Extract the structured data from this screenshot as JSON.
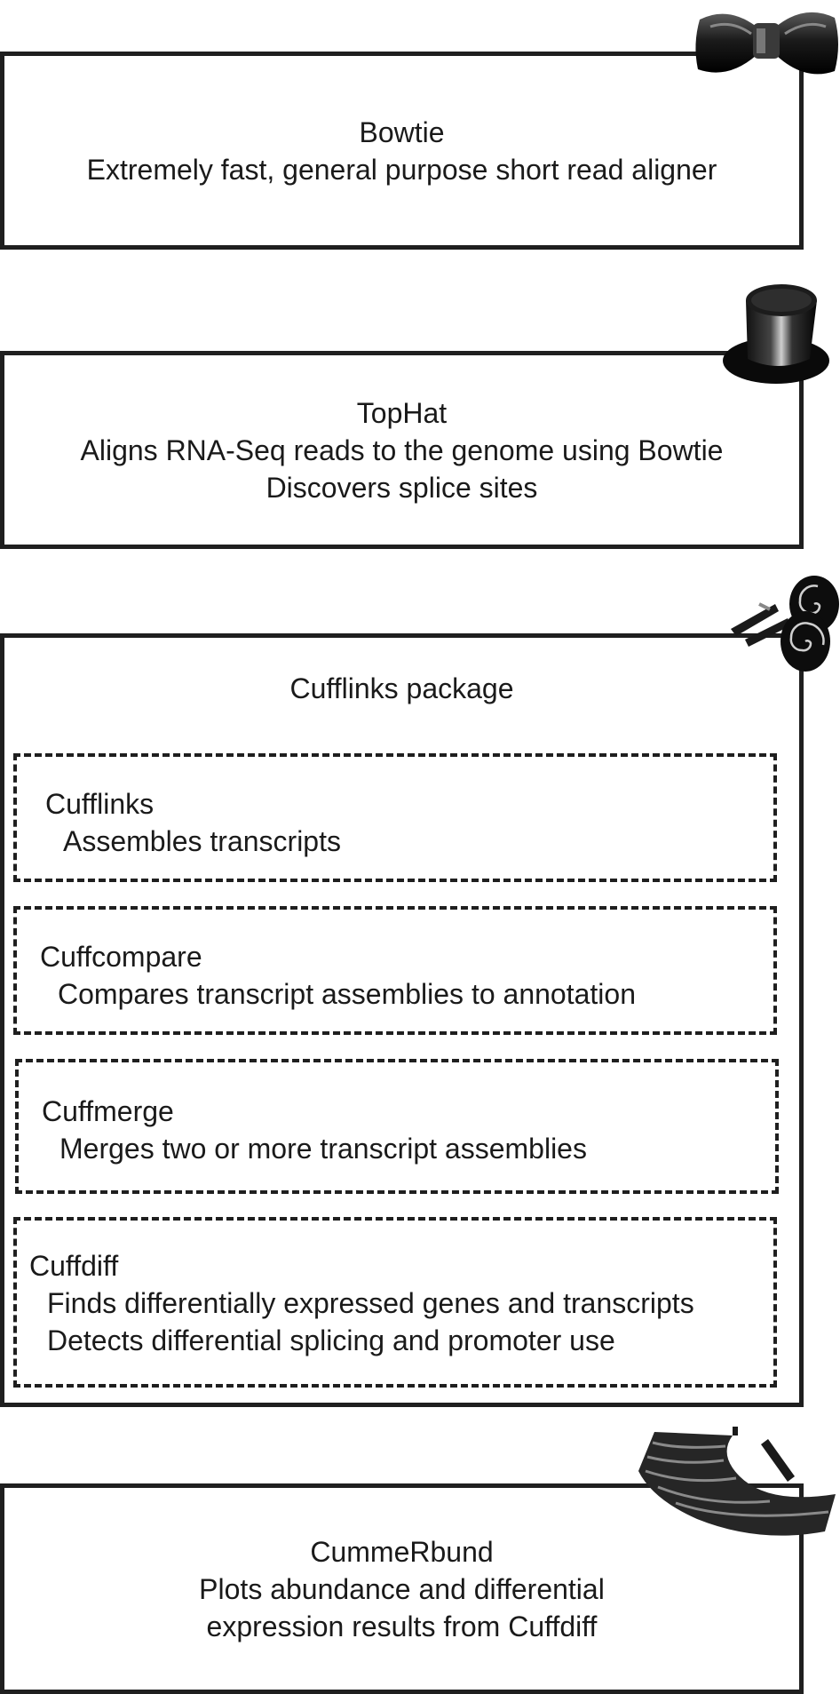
{
  "bowtie": {
    "title": "Bowtie",
    "description": "Extremely fast, general purpose short read aligner",
    "icon": "bowtie-icon"
  },
  "tophat": {
    "title": "TopHat",
    "lines": [
      "Aligns RNA-Seq reads to the genome using Bowtie",
      "Discovers splice sites"
    ],
    "icon": "top-hat-icon"
  },
  "cufflinks_package": {
    "title": "Cufflinks package",
    "icon": "cufflinks-icon",
    "tools": [
      {
        "name": "Cufflinks",
        "lines": [
          "Assembles transcripts"
        ]
      },
      {
        "name": "Cuffcompare",
        "lines": [
          "Compares transcript assemblies to annotation"
        ]
      },
      {
        "name": "Cuffmerge",
        "lines": [
          "Merges two or more transcript assemblies"
        ]
      },
      {
        "name": "Cuffdiff",
        "lines": [
          "Finds differentially expressed genes and transcripts",
          "Detects differential splicing and promoter use"
        ]
      }
    ]
  },
  "cummerbund": {
    "title": "CummeRbund",
    "lines": [
      "Plots abundance and differential",
      "expression results from Cuffdiff"
    ],
    "icon": "cummerbund-icon"
  }
}
